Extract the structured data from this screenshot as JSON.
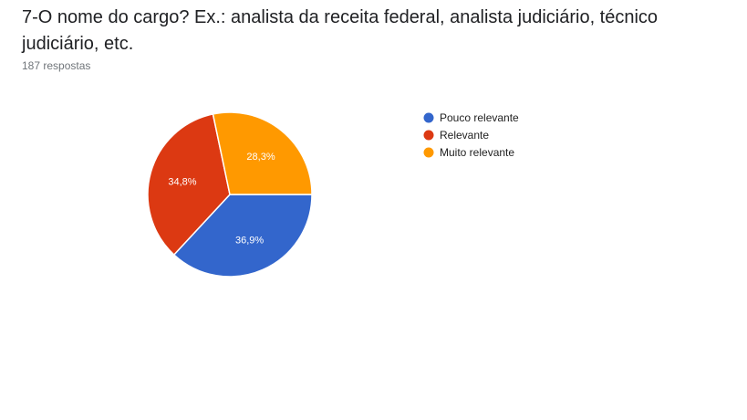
{
  "question": {
    "title": "7-O nome do cargo? Ex.: analista da receita federal, analista judiciário, técnico judiciário, etc.",
    "response_count": "187 respostas"
  },
  "chart_data": {
    "type": "pie",
    "title": "",
    "slices": [
      {
        "label": "Pouco relevante",
        "value": 36.9,
        "display": "36,9%",
        "color": "#3366cc"
      },
      {
        "label": "Relevante",
        "value": 34.8,
        "display": "34,8%",
        "color": "#dc3912"
      },
      {
        "label": "Muito relevante",
        "value": 28.3,
        "display": "28,3%",
        "color": "#ff9900"
      }
    ],
    "legend_position": "right",
    "start_direction": "3 o'clock, clockwise"
  }
}
